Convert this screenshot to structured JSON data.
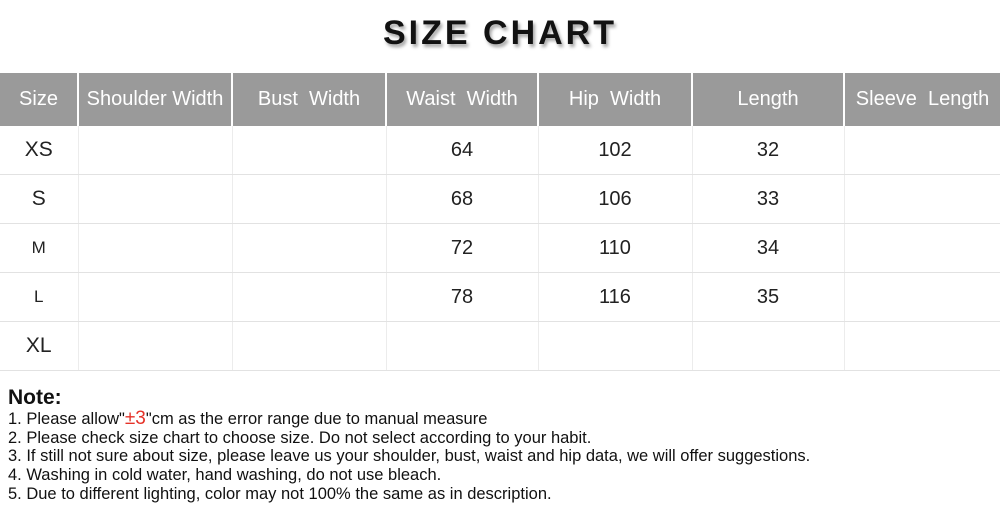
{
  "title": "SIZE CHART",
  "table": {
    "headers": [
      "Size",
      "Shoulder Width",
      "Bust  Width",
      "Waist  Width",
      "Hip  Width",
      "Length",
      "Sleeve  Length"
    ],
    "rows": [
      {
        "cells": [
          "XS",
          "",
          "",
          "64",
          "102",
          "32",
          ""
        ]
      },
      {
        "cells": [
          "S",
          "",
          "",
          "68",
          "106",
          "33",
          ""
        ]
      },
      {
        "cells": [
          "M",
          "",
          "",
          "72",
          "110",
          "34",
          ""
        ]
      },
      {
        "cells": [
          "L",
          "",
          "",
          "78",
          "116",
          "35",
          ""
        ]
      },
      {
        "cells": [
          "XL",
          "",
          "",
          "",
          "",
          "",
          ""
        ]
      }
    ]
  },
  "note": {
    "heading": "Note:",
    "item1": {
      "prefix": "1. Please allow\"",
      "highlight": "±3",
      "suffix": "\"cm as the error range due to manual measure"
    },
    "items": [
      "2. Please check size chart to choose size. Do not select according to your habit.",
      "3. If still not sure about size, please leave us your shoulder, bust, waist and hip data, we will offer suggestions.",
      "4. Washing in cold water, hand washing, do not use bleach.",
      "5. Due to different lighting, color may not 100% the same as in description."
    ]
  },
  "colors": {
    "header_background": "#9a9a9a",
    "header_text": "#ffffff",
    "grid_line": "#e2e2e2",
    "highlight_red": "#e53228",
    "body_text": "#222222"
  }
}
